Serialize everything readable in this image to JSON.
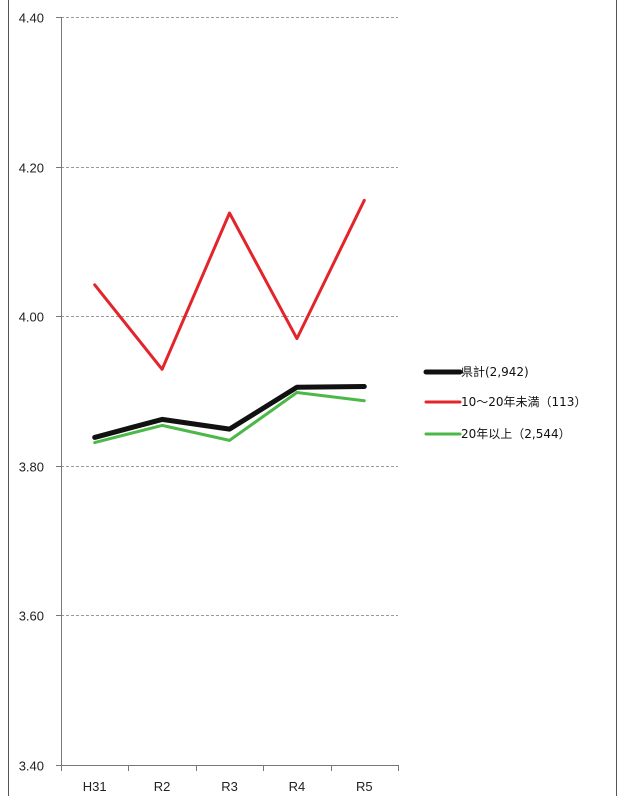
{
  "chart_data": {
    "type": "line",
    "categories": [
      "H31",
      "R2",
      "R3",
      "R4",
      "R5"
    ],
    "ylim": [
      3.4,
      4.4
    ],
    "yticks": [
      "3.40",
      "3.60",
      "3.80",
      "4.00",
      "4.20",
      "4.40"
    ],
    "grid": true,
    "legend_position": "right",
    "series": [
      {
        "name": "県計(2,942)",
        "color": "#111111",
        "values": [
          3.838,
          3.862,
          3.849,
          3.905,
          3.906
        ]
      },
      {
        "name": "10〜20年未満（113）",
        "color": "#e3242b",
        "values": [
          4.042,
          3.929,
          4.138,
          3.97,
          4.155
        ]
      },
      {
        "name": "20年以上（2,544）",
        "color": "#4cb848",
        "values": [
          3.831,
          3.854,
          3.834,
          3.898,
          3.887
        ]
      }
    ]
  }
}
